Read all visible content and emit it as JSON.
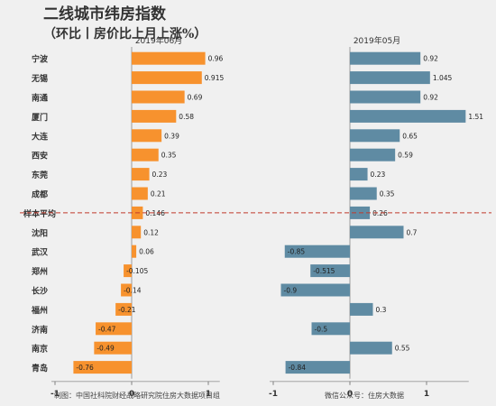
{
  "header": {
    "title": "二线城市纬房指数",
    "subtitle": "（环比丨房价比上月上涨%）"
  },
  "footer": {
    "source": "制图：中国社科院财经战略研究院住房大数据项目组",
    "wechat": "微信公众号：住房大数据"
  },
  "chart_data": {
    "type": "bar",
    "orientation": "horizontal",
    "categories": [
      "宁波",
      "无锡",
      "南通",
      "厦门",
      "大连",
      "西安",
      "东莞",
      "成都",
      "样本平均",
      "沈阳",
      "武汉",
      "郑州",
      "长沙",
      "福州",
      "济南",
      "南京",
      "青岛"
    ],
    "reference_category": "样本平均",
    "xlim": [
      -1,
      1.5
    ],
    "xticks": [
      -1,
      0,
      1
    ],
    "series": [
      {
        "name": "2019年06月",
        "color": "#F7922E",
        "values": [
          0.96,
          0.915,
          0.69,
          0.58,
          0.39,
          0.35,
          0.23,
          0.21,
          0.146,
          0.12,
          0.06,
          -0.105,
          -0.14,
          -0.21,
          -0.47,
          -0.49,
          -0.76
        ],
        "value_labels": [
          "0.96",
          "0.915",
          "0.69",
          "0.58",
          "0.39",
          "0.35",
          "0.23",
          "0.21",
          "0.146",
          "0.12",
          "0.06",
          "-0.105",
          "-0.14",
          "-0.21",
          "-0.47",
          "-0.49",
          "-0.76"
        ]
      },
      {
        "name": "2019年05月",
        "color": "#5F8BA3",
        "values": [
          0.92,
          1.045,
          0.92,
          1.51,
          0.65,
          0.59,
          0.23,
          0.35,
          0.26,
          0.7,
          -0.85,
          -0.515,
          -0.9,
          0.3,
          -0.5,
          0.55,
          -0.84
        ],
        "value_labels": [
          "0.92",
          "1.045",
          "0.92",
          "1.51",
          "0.65",
          "0.59",
          "0.23",
          "0.35",
          "0.26",
          "0.7",
          "-0.85",
          "-0.515",
          "-0.9",
          "0.3",
          "-0.5",
          "0.55",
          "-0.84"
        ]
      }
    ],
    "reference_line_color": "#C0392B"
  }
}
